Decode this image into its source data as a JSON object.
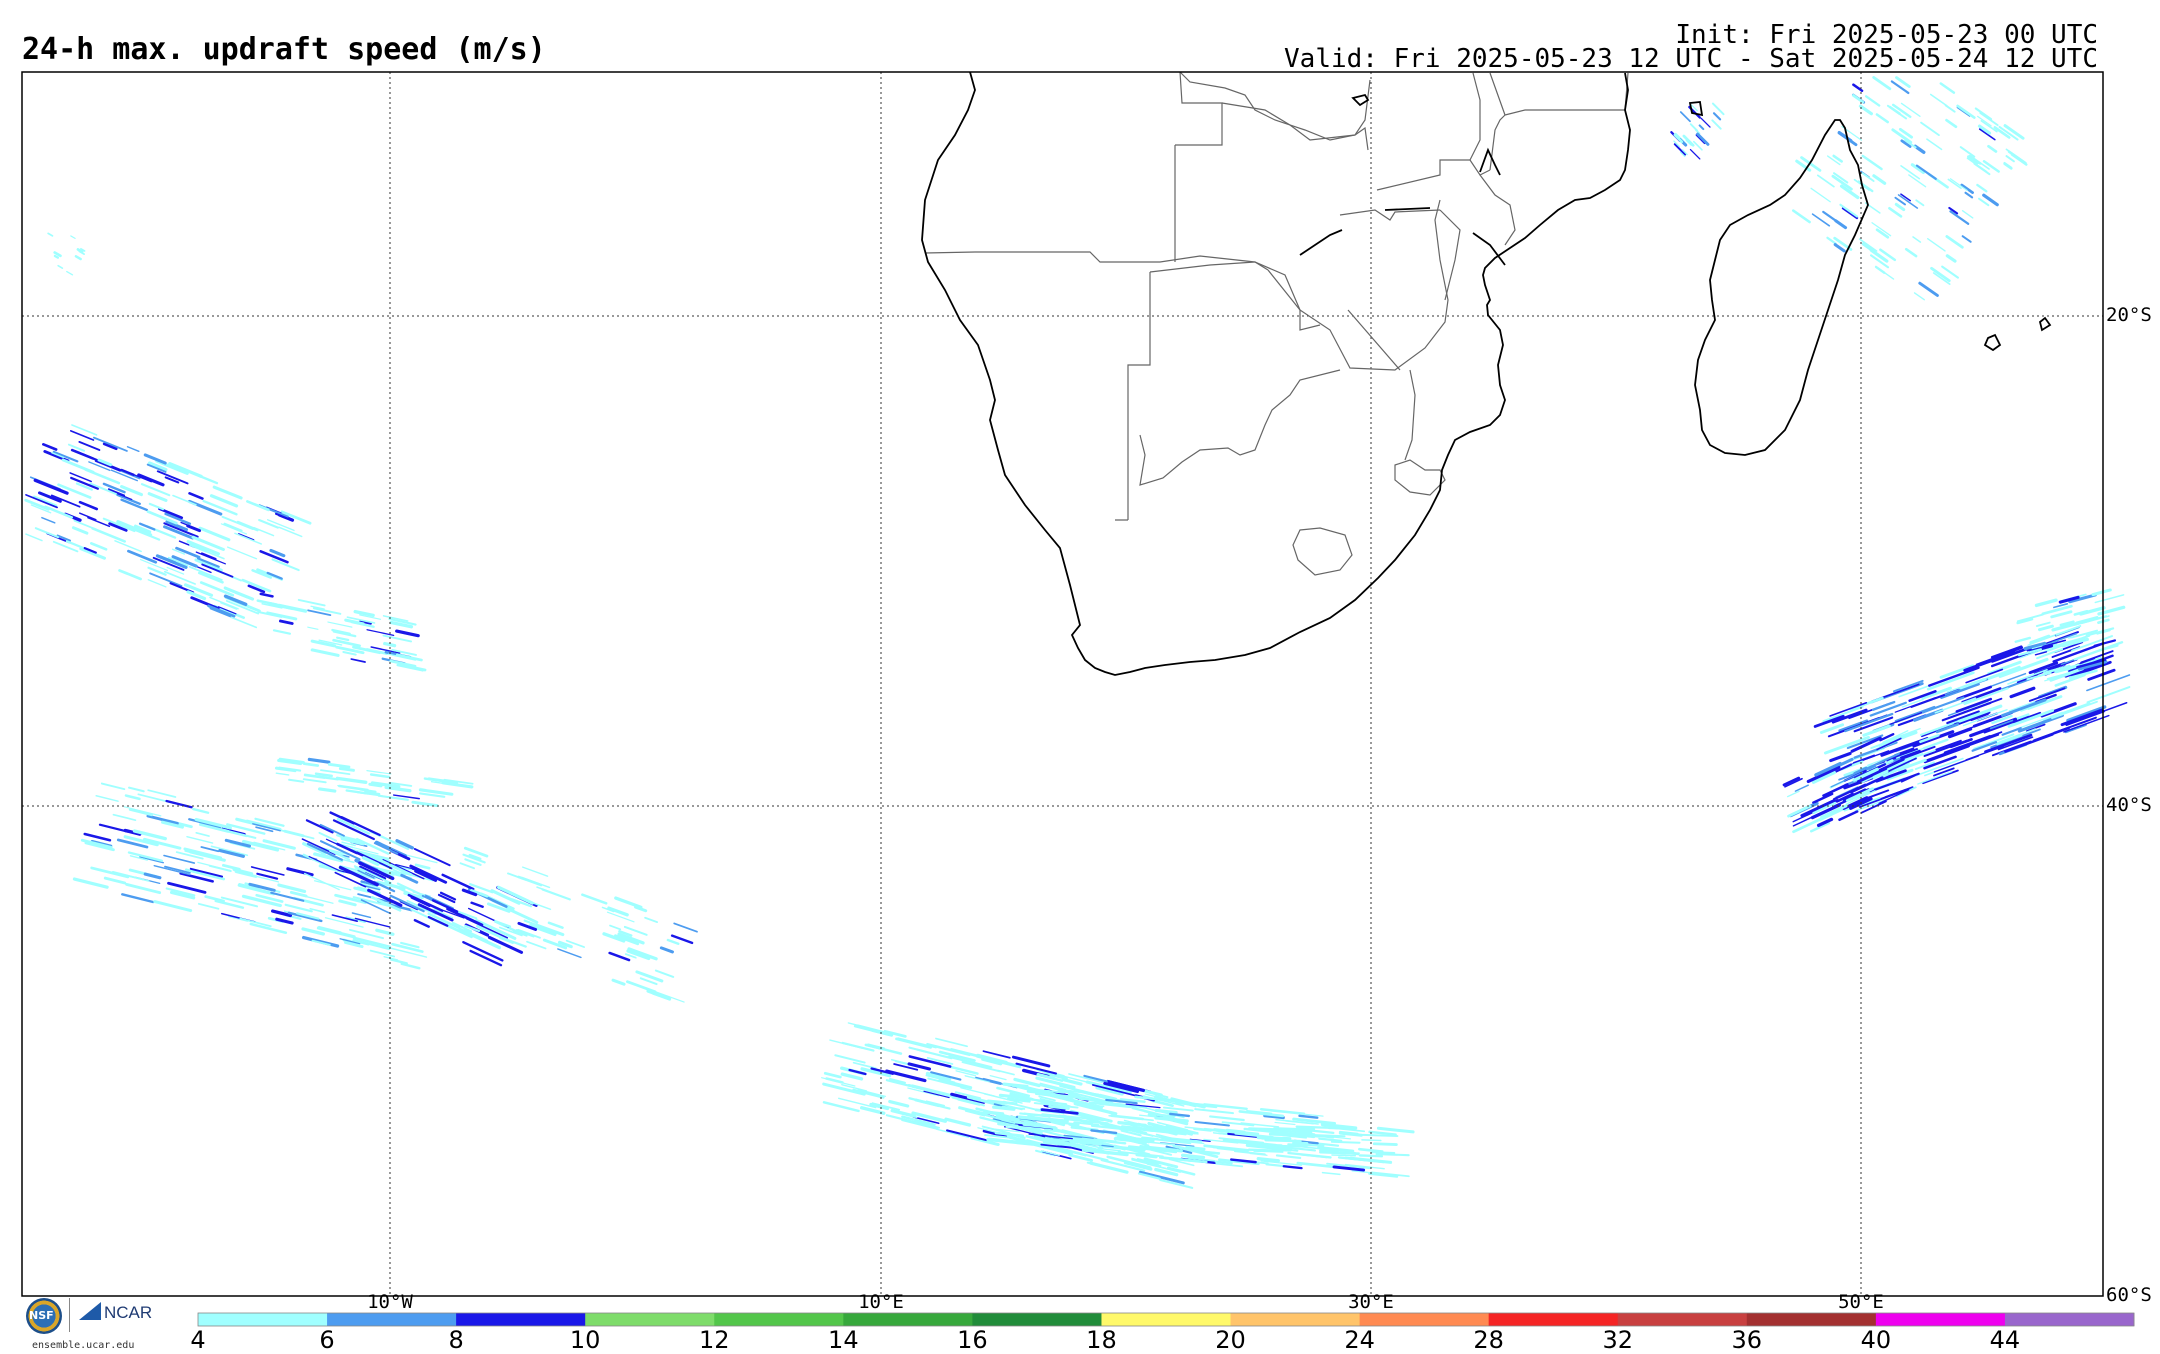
{
  "header": {
    "title": "24-h max. updraft speed (m/s)",
    "init": "Init: Fri 2025-05-23 00 UTC",
    "valid": "Valid: Fri 2025-05-23 12 UTC - Sat 2025-05-24 12 UTC"
  },
  "map": {
    "latitude_labels": [
      "20°S",
      "40°S",
      "60°S"
    ],
    "longitude_labels": [
      "10°W",
      "10°E",
      "30°E",
      "50°E"
    ],
    "grid": "dotted",
    "land_fill": "#ffffff",
    "coastline_color": "#000000",
    "border_color": "#555555"
  },
  "colorbar": {
    "units": "m/s",
    "ticks": [
      "4",
      "6",
      "8",
      "10",
      "12",
      "14",
      "16",
      "18",
      "20",
      "24",
      "28",
      "32",
      "36",
      "40",
      "44"
    ],
    "colors": [
      "#a0ffff",
      "#4d9cf0",
      "#1a17e8",
      "#7edc6a",
      "#53c64a",
      "#37a83c",
      "#218c3a",
      "#fff96a",
      "#ffc46a",
      "#ff8a52",
      "#f52424",
      "#c84040",
      "#a33030",
      "#ee00ee",
      "#9966cc"
    ]
  },
  "logos": {
    "nsf": "NSF",
    "ncar": "NCAR",
    "url": "ensemble.ucar.edu"
  }
}
